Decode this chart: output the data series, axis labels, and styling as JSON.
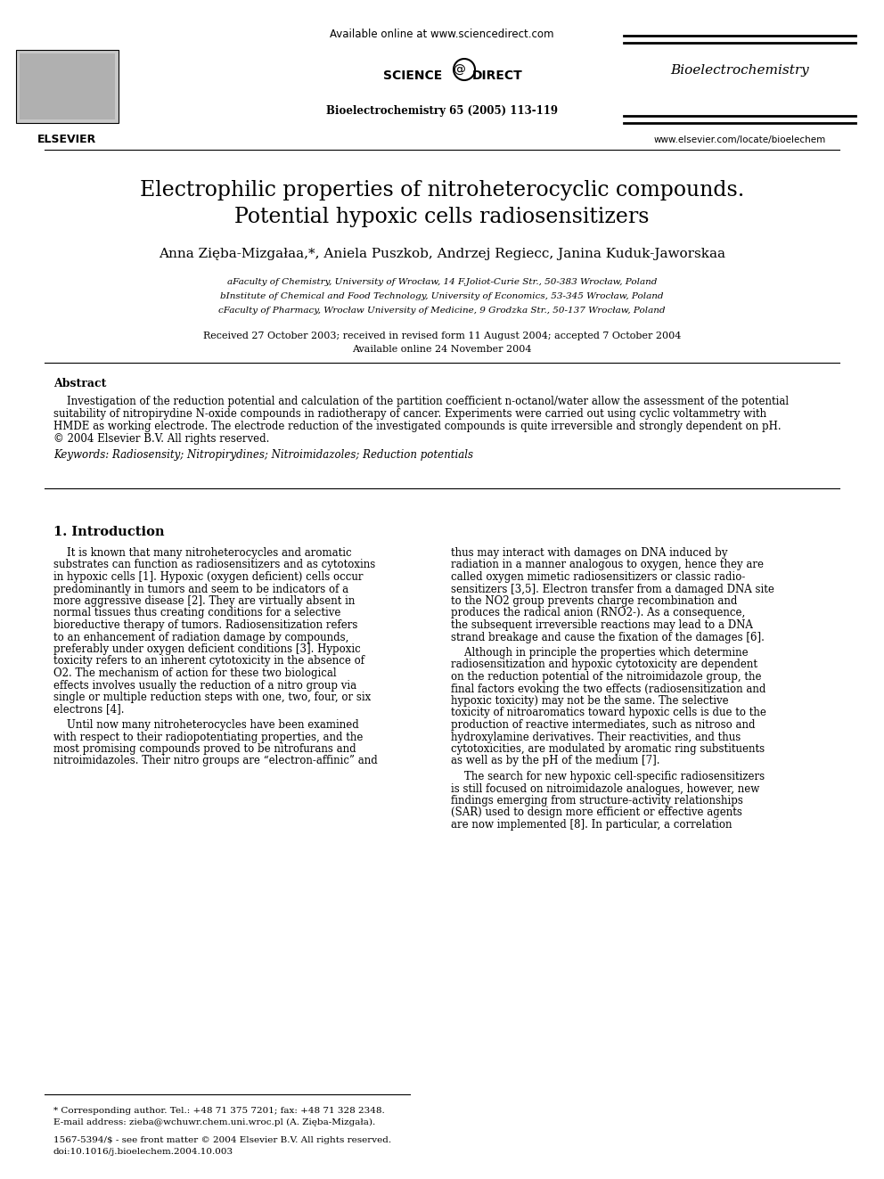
{
  "bg_color": "#ffffff",
  "available_online": "Available online at www.sciencedirect.com",
  "journal_name_header": "Bioelectrochemistry",
  "journal_citation": "Bioelectrochemistry 65 (2005) 113-119",
  "website": "www.elsevier.com/locate/bioelechem",
  "elsevier_label": "ELSEVIER",
  "title_line1": "Electrophilic properties of nitroheterocyclic compounds.",
  "title_line2": "Potential hypoxic cells radiosensitizers",
  "authors_main": "Anna Zięba-Mizgała",
  "authors_sup1": "a,*",
  "authors_part2": ", Aniela Puszko",
  "authors_sup2": "b",
  "authors_part3": ", Andrzej Regiec",
  "authors_sup3": "c",
  "authors_part4": ", Janina Kuduk-Jaworska",
  "authors_sup4": "a",
  "affil_a": "aFaculty of Chemistry, University of Wrocław, 14 F.Joliot-Curie Str., 50-383 Wrocław, Poland",
  "affil_b": "bInstitute of Chemical and Food Technology, University of Economics, 53-345 Wrocław, Poland",
  "affil_c": "cFaculty of Pharmacy, Wrocław University of Medicine, 9 Grodzka Str., 50-137 Wrocław, Poland",
  "received": "Received 27 October 2003; received in revised form 11 August 2004; accepted 7 October 2004",
  "available_online2": "Available online 24 November 2004",
  "abstract_title": "Abstract",
  "abstract_text": "    Investigation of the reduction potential and calculation of the partition coefficient n-octanol/water allow the assessment of the potential suitability of nitropirydine N-oxide compounds in radiotherapy of cancer. Experiments were carried out using cyclic voltammetry with HMDE as working electrode. The electrode reduction of the investigated compounds is quite irreversible and strongly dependent on pH.\n© 2004 Elsevier B.V. All rights reserved.",
  "keywords": "Keywords: Radiosensity; Nitropirydines; Nitroimidazoles; Reduction potentials",
  "section1_title": "1. Introduction",
  "col1_para1": "    It is known that many nitroheterocycles and aromatic substrates can function as radiosensitizers and as cytotoxins in hypoxic cells [1]. Hypoxic (oxygen deficient) cells occur predominantly in tumors and seem to be indicators of a more aggressive disease [2]. They are virtually absent in normal tissues thus creating conditions for a selective bioreductive therapy of tumors. Radiosensitization refers to an enhancement of radiation damage by compounds, preferably under oxygen deficient conditions [3]. Hypoxic toxicity refers to an inherent cytotoxicity in the absence of O2. The mechanism of action for these two biological effects involves usually the reduction of a nitro group via single or multiple reduction steps with one, two, four, or six electrons [4].",
  "col1_para2": "    Until now many nitroheterocycles have been examined with respect to their radiopotentiating properties, and the most promising compounds proved to be nitrofurans and nitroimidazoles. Their nitro groups are “electron-affinic” and",
  "col2_para1": "thus may interact with damages on DNA induced by radiation in a manner analogous to oxygen, hence they are called oxygen mimetic radiosensitizers or classic radio-sensitizers [3,5]. Electron transfer from a damaged DNA site to the NO2 group prevents charge recombination and produces the radical anion (RNO2-). As a consequence, the subsequent irreversible reactions may lead to a DNA strand breakage and cause the fixation of the damages [6].",
  "col2_para2": "    Although in principle the properties which determine radiosensitization and hypoxic cytotoxicity are dependent on the reduction potential of the nitroimidazole group, the final factors evoking the two effects (radiosensitization and hypoxic toxicity) may not be the same. The selective toxicity of nitroaromatics toward hypoxic cells is due to the production of reactive intermediates, such as nitroso and hydroxylamine derivatives. Their reactivities, and thus cytotoxicities, are modulated by aromatic ring substituents as well as by the pH of the medium [7].",
  "col2_para3": "    The search for new hypoxic cell-specific radiosensitizers is still focused on nitroimidazole analogues, however, new findings emerging from structure-activity relationships (SAR) used to design more efficient or effective agents are now implemented [8]. In particular, a correlation",
  "footnote1": "* Corresponding author. Tel.: +48 71 375 7201; fax: +48 71 328 2348.",
  "footnote2": "E-mail address: zieba@wchuwr.chem.uni.wroc.pl (A. Zięba-Mizgała).",
  "footnote3": "1567-5394/$ - see front matter © 2004 Elsevier B.V. All rights reserved.",
  "footnote4": "doi:10.1016/j.bioelechem.2004.10.003"
}
